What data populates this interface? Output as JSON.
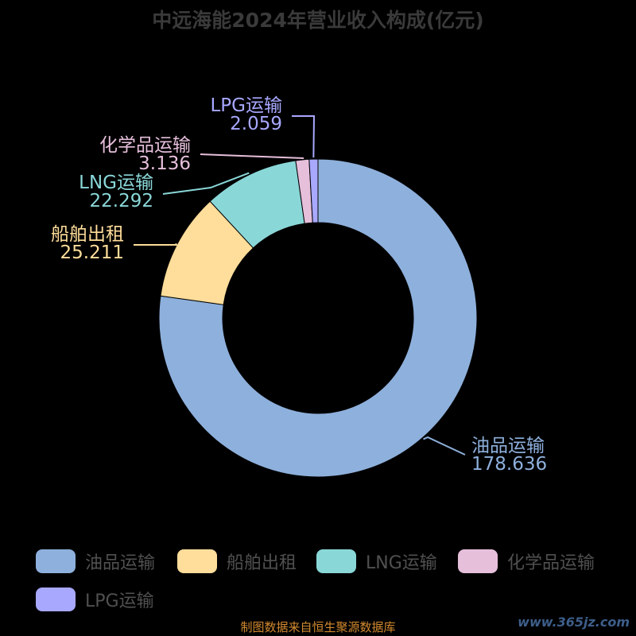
{
  "chart_data": {
    "type": "pie",
    "title": "中远海能2024年营业收入构成(亿元)",
    "donut": true,
    "legend_position": "bottom",
    "categories": [
      "油品运输",
      "船舶出租",
      "LNG运输",
      "化学品运输",
      "LPG运输"
    ],
    "values": [
      178.636,
      25.211,
      22.292,
      3.136,
      2.059
    ],
    "value_labels": [
      "178.636",
      "25.211",
      "22.292",
      "3.136",
      "2.059"
    ],
    "colors": [
      "#8eb0dc",
      "#ffdd9a",
      "#8ad7d8",
      "#e6bfdb",
      "#a8a8ff"
    ]
  },
  "source_text": "制图数据来自恒生聚源数据库",
  "watermark_text": "www.365jz.com"
}
